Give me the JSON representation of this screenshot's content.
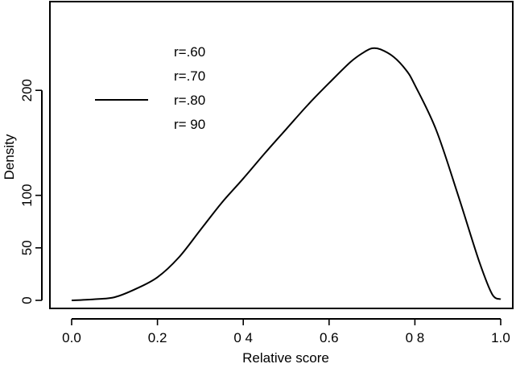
{
  "chart_data": {
    "type": "line",
    "xlabel": "Relative score",
    "ylabel": "Density",
    "xlim": [
      0.0,
      1.0
    ],
    "ylim": [
      0,
      250
    ],
    "x_ticks": [
      {
        "value": 0.0,
        "label": "0.0"
      },
      {
        "value": 0.2,
        "label": "0.2"
      },
      {
        "value": 0.4,
        "label": "0 4"
      },
      {
        "value": 0.6,
        "label": "0.6"
      },
      {
        "value": 0.8,
        "label": "0 8"
      },
      {
        "value": 1.0,
        "label": "1.0"
      }
    ],
    "y_ticks": [
      {
        "value": 0,
        "label": "0"
      },
      {
        "value": 50,
        "label": "50"
      },
      {
        "value": 100,
        "label": "100"
      },
      {
        "value": 200,
        "label": "200"
      }
    ],
    "legend": {
      "placement": "top-left",
      "entries": [
        "r=.60",
        "r=.70",
        "r=.80",
        "r= 90"
      ]
    },
    "series": [
      {
        "x": [
          0.0,
          0.05,
          0.1,
          0.15,
          0.2,
          0.25,
          0.3,
          0.35,
          0.4,
          0.45,
          0.5,
          0.55,
          0.6,
          0.65,
          0.68,
          0.7,
          0.72,
          0.75,
          0.78,
          0.8,
          0.85,
          0.9,
          0.95,
          0.98,
          1.0
        ],
        "y": [
          0,
          1,
          3,
          11,
          22,
          41,
          67,
          93,
          116,
          140,
          163,
          186,
          207,
          227,
          236,
          240,
          239,
          232,
          219,
          205,
          162,
          101,
          37,
          6,
          1
        ]
      }
    ],
    "grid": false
  },
  "colors": {
    "axis": "#000000",
    "line": "#000000",
    "background": "#ffffff"
  }
}
